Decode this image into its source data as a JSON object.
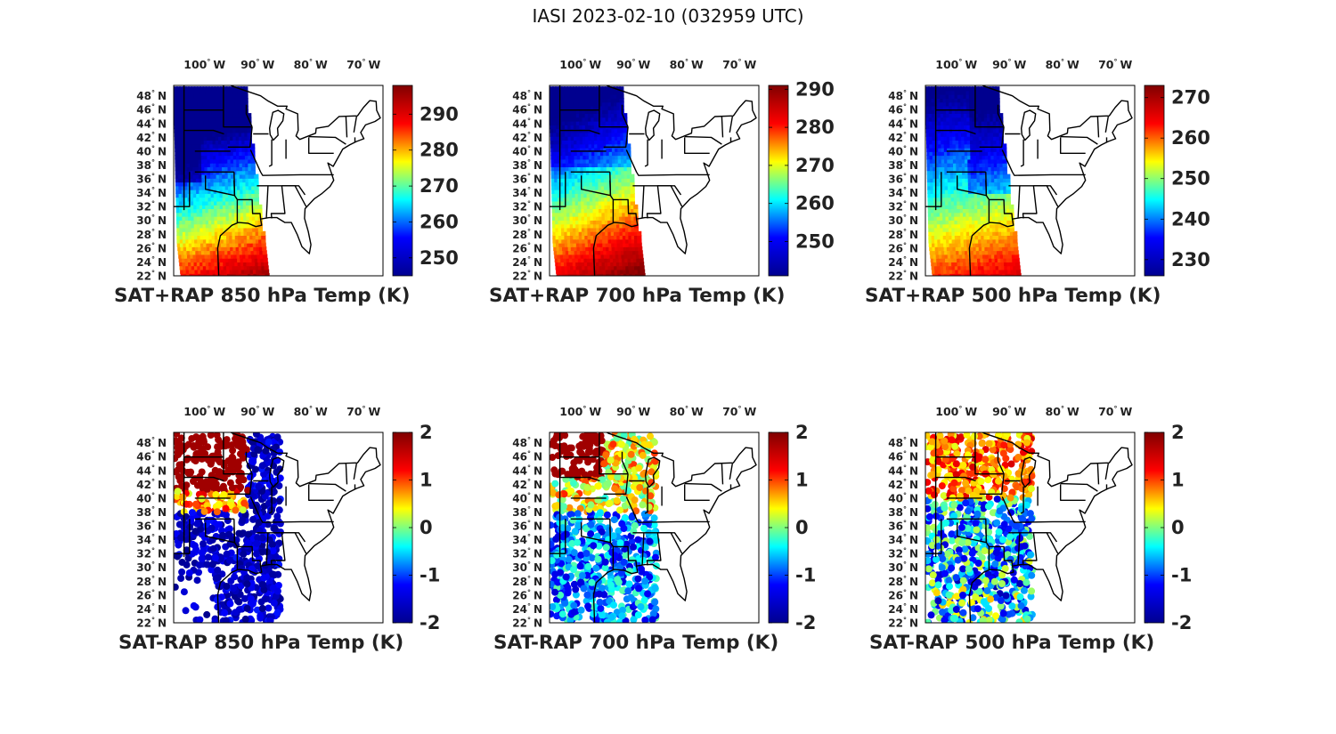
{
  "figure": {
    "title": "IASI 2023-02-10 (032959 UTC)"
  },
  "axes": {
    "lon_ticks": [
      {
        "value": -100,
        "deg": "100",
        "hemi": "W"
      },
      {
        "value": -90,
        "deg": "90",
        "hemi": "W"
      },
      {
        "value": -80,
        "deg": "80",
        "hemi": "W"
      },
      {
        "value": -70,
        "deg": "70",
        "hemi": "W"
      }
    ],
    "lat_ticks": [
      {
        "value": 48,
        "deg": "48",
        "hemi": "N"
      },
      {
        "value": 46,
        "deg": "46",
        "hemi": "N"
      },
      {
        "value": 44,
        "deg": "44",
        "hemi": "N"
      },
      {
        "value": 42,
        "deg": "42",
        "hemi": "N"
      },
      {
        "value": 40,
        "deg": "40",
        "hemi": "N"
      },
      {
        "value": 38,
        "deg": "38",
        "hemi": "N"
      },
      {
        "value": 36,
        "deg": "36",
        "hemi": "N"
      },
      {
        "value": 34,
        "deg": "34",
        "hemi": "N"
      },
      {
        "value": 32,
        "deg": "32",
        "hemi": "N"
      },
      {
        "value": 30,
        "deg": "30",
        "hemi": "N"
      },
      {
        "value": 28,
        "deg": "28",
        "hemi": "N"
      },
      {
        "value": 26,
        "deg": "26",
        "hemi": "N"
      },
      {
        "value": 24,
        "deg": "24",
        "hemi": "N"
      },
      {
        "value": 22,
        "deg": "22",
        "hemi": "N"
      }
    ],
    "degree_symbol": "°"
  },
  "colormap": {
    "name": "jet",
    "stops": [
      "#00008f",
      "#0000ff",
      "#00ffff",
      "#ffff00",
      "#ff0000",
      "#800000"
    ]
  },
  "panels": [
    {
      "id": "sat-rap-850",
      "label": "SAT+RAP 850 hPa Temp (K)",
      "kind": "field",
      "level": 850,
      "colorbar": {
        "min": 245,
        "max": 298,
        "ticks": [
          "250",
          "260",
          "270",
          "280",
          "290"
        ]
      }
    },
    {
      "id": "sat-rap-700",
      "label": "SAT+RAP 700 hPa Temp (K)",
      "kind": "field",
      "level": 700,
      "colorbar": {
        "min": 241,
        "max": 291,
        "ticks": [
          "250",
          "260",
          "270",
          "280",
          "290"
        ]
      }
    },
    {
      "id": "sat-rap-500",
      "label": "SAT+RAP 500 hPa Temp (K)",
      "kind": "field",
      "level": 500,
      "colorbar": {
        "min": 226,
        "max": 273,
        "ticks": [
          "230",
          "240",
          "250",
          "260",
          "270"
        ]
      }
    },
    {
      "id": "sat-minus-rap-850",
      "label": "SAT-RAP 850 hPa Temp (K)",
      "kind": "diff",
      "level": 850,
      "colorbar": {
        "min": -2,
        "max": 2,
        "ticks": [
          "-2",
          "-1",
          "0",
          "1",
          "2"
        ]
      }
    },
    {
      "id": "sat-minus-rap-700",
      "label": "SAT-RAP 700 hPa Temp (K)",
      "kind": "diff",
      "level": 700,
      "colorbar": {
        "min": -2,
        "max": 2,
        "ticks": [
          "-2",
          "-1",
          "0",
          "1",
          "2"
        ]
      }
    },
    {
      "id": "sat-minus-rap-500",
      "label": "SAT-RAP 500 hPa Temp (K)",
      "kind": "diff",
      "level": 500,
      "colorbar": {
        "min": -2,
        "max": 2,
        "ticks": [
          "-2",
          "-1",
          "0",
          "1",
          "2"
        ]
      }
    }
  ]
}
